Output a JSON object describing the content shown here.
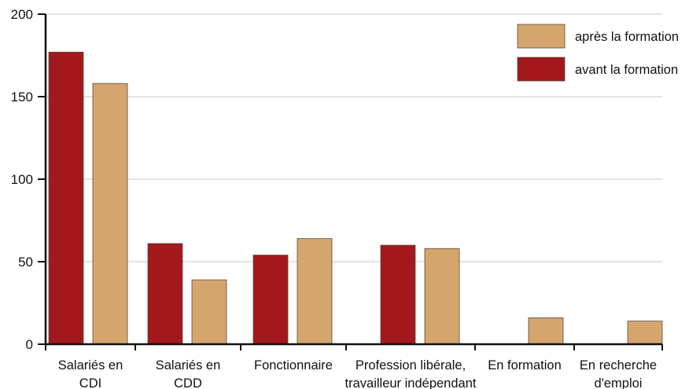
{
  "chart_data": {
    "type": "bar",
    "categories": [
      [
        "Salariés en",
        "CDI"
      ],
      [
        "Salariés en",
        "CDD"
      ],
      [
        "Fonctionnaire"
      ],
      [
        "Profession libérale,",
        "travailleur indépendant"
      ],
      [
        "En formation"
      ],
      [
        "En recherche",
        "d'emploi"
      ]
    ],
    "series": [
      {
        "name": "avant la formation",
        "color": "#a3181c",
        "values": [
          177,
          61,
          54,
          60,
          0,
          0
        ]
      },
      {
        "name": "après la formation",
        "color": "#d4a66e",
        "values": [
          158,
          39,
          64,
          58,
          16,
          14
        ]
      }
    ],
    "yticks": [
      0,
      50,
      100,
      150,
      200
    ],
    "ylim": [
      0,
      200
    ],
    "grid": "horizontal",
    "legend": {
      "position": "top-right",
      "order": [
        "après la formation",
        "avant la formation"
      ]
    }
  }
}
